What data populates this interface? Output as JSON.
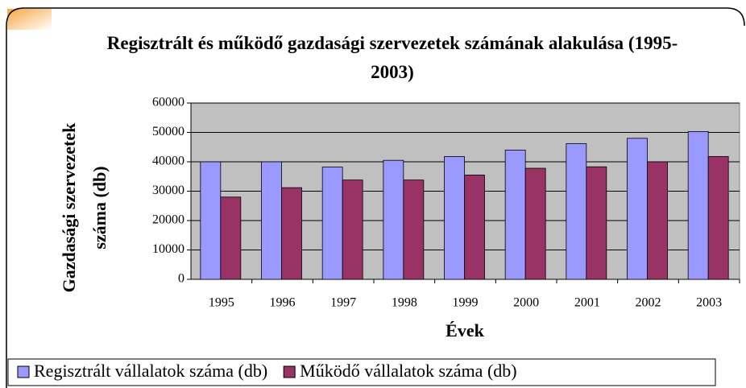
{
  "chart_data": {
    "type": "bar",
    "title": "Regisztrált és működő gazdasági szervezetek számának alakulása (1995-2003)",
    "x_label": "Évek",
    "y_label": "Gazdasági szervezetek száma (db)",
    "categories": [
      "1995",
      "1996",
      "1997",
      "1998",
      "1999",
      "2000",
      "2001",
      "2002",
      "2003"
    ],
    "series": [
      {
        "name": "Regisztrált vállalatok száma (db)",
        "color": "#9999ff",
        "values": [
          40000,
          40000,
          38200,
          40500,
          41800,
          44000,
          46200,
          48000,
          50300
        ]
      },
      {
        "name": "Működő vállalatok száma (db)",
        "color": "#993366",
        "values": [
          28000,
          31200,
          33800,
          33800,
          35500,
          37800,
          38300,
          40000,
          41800
        ]
      }
    ],
    "ylim": [
      0,
      60000
    ],
    "yticks": [
      0,
      10000,
      20000,
      30000,
      40000,
      50000,
      60000
    ],
    "grid": true,
    "legend": "bottom",
    "plot_background": "#c0c0c0"
  }
}
